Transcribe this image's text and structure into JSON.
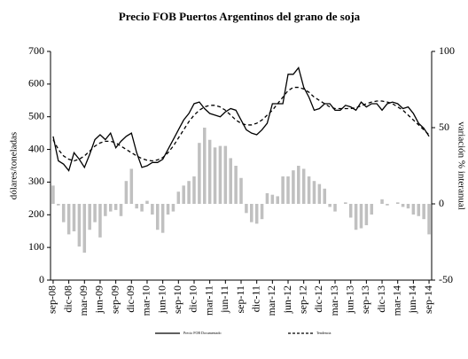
{
  "chart_data": {
    "type": "combo",
    "title": "Precio FOB Puertos Argentinos del grano de soja",
    "ylabel": "dólares/toneladas",
    "y2label": "variación % interanual",
    "categories": [
      "sep-08",
      null,
      null,
      "dic-08",
      null,
      null,
      "mar-09",
      null,
      null,
      "jun-09",
      null,
      null,
      "sep-09",
      null,
      null,
      "dic-09",
      null,
      null,
      "mar-10",
      null,
      null,
      "jun-10",
      null,
      null,
      "sep-10",
      null,
      null,
      "dic-10",
      null,
      null,
      "mar-11",
      null,
      null,
      "jun-11",
      null,
      null,
      "sep-11",
      null,
      null,
      "dic-11",
      null,
      null,
      "mar-12",
      null,
      null,
      "jun-12",
      null,
      null,
      "sep-12",
      null,
      null,
      "dic-12",
      null,
      null,
      "mar-13",
      null,
      null,
      "jun-13",
      null,
      null,
      "sep-13",
      null,
      null,
      "dic-13",
      null,
      null,
      "mar-14",
      null,
      null,
      "jun-14",
      null,
      null,
      "sep-14"
    ],
    "series": [
      {
        "name": "Precio FOB Documentado",
        "type": "line",
        "color": "#000000",
        "values": [
          440,
          365,
          355,
          335,
          390,
          370,
          345,
          385,
          430,
          445,
          430,
          450,
          405,
          425,
          440,
          450,
          390,
          345,
          350,
          360,
          360,
          370,
          400,
          430,
          460,
          490,
          510,
          540,
          545,
          525,
          510,
          505,
          500,
          515,
          525,
          520,
          490,
          460,
          450,
          445,
          460,
          480,
          540,
          540,
          540,
          630,
          630,
          650,
          590,
          560,
          520,
          525,
          540,
          540,
          520,
          520,
          535,
          530,
          520,
          545,
          530,
          540,
          540,
          520,
          540,
          545,
          540,
          525,
          530,
          510,
          480,
          465,
          440
        ]
      },
      {
        "name": "Tendencia",
        "type": "dashed",
        "color": "#000000",
        "values": [
          430,
          400,
          380,
          370,
          365,
          370,
          380,
          395,
          410,
          420,
          425,
          425,
          420,
          410,
          400,
          390,
          380,
          372,
          367,
          365,
          368,
          375,
          390,
          410,
          435,
          460,
          485,
          505,
          520,
          530,
          535,
          535,
          530,
          520,
          505,
          490,
          480,
          475,
          475,
          480,
          490,
          505,
          520,
          540,
          560,
          580,
          590,
          590,
          585,
          575,
          560,
          550,
          540,
          530,
          525,
          525,
          525,
          525,
          528,
          533,
          540,
          545,
          548,
          548,
          545,
          540,
          530,
          520,
          505,
          490,
          475,
          460,
          445
        ]
      },
      {
        "type": "bar",
        "axis": "y2",
        "color": "#c0c0c0",
        "values": [
          12,
          -1,
          -12,
          -20,
          -18,
          -28,
          -32,
          -17,
          -12,
          -22,
          -8,
          -5,
          -4,
          -8,
          15,
          23,
          -3,
          -5,
          2,
          -7,
          -17,
          -19,
          -7,
          -5,
          8,
          12,
          15,
          18,
          40,
          50,
          42,
          37,
          38,
          38,
          30,
          25,
          17,
          -6,
          -12,
          -13,
          -10,
          7,
          6,
          5,
          18,
          18,
          22,
          25,
          23,
          18,
          15,
          13,
          10,
          -2,
          -5,
          0,
          1,
          -9,
          -17,
          -16,
          -14,
          -7,
          0,
          3,
          -1,
          0,
          1,
          -2,
          -3,
          -7,
          -8,
          -10,
          -20
        ]
      }
    ],
    "ylim": [
      0,
      700
    ],
    "yticks": [
      0,
      100,
      200,
      300,
      400,
      500,
      600,
      700
    ],
    "y2lim": [
      -50,
      100
    ],
    "y2ticks": [
      -50,
      0,
      50,
      100
    ]
  }
}
